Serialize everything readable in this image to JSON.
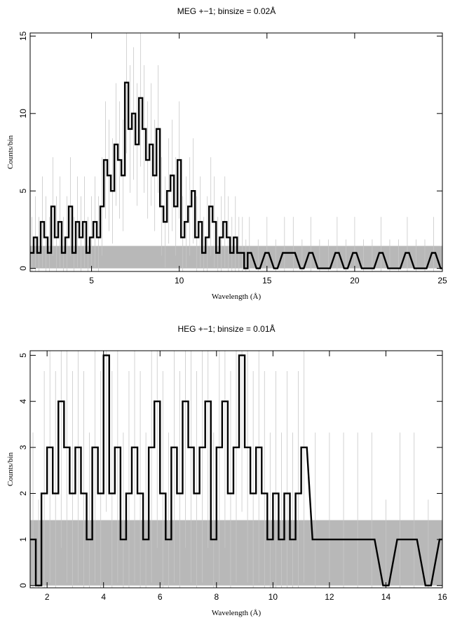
{
  "chart_data": [
    {
      "type": "line",
      "title": "MEG +−1; binsize = 0.02Å",
      "xlabel": "Wavelength (Å)",
      "ylabel": "Counts/bin",
      "xlim": [
        1.5,
        25
      ],
      "ylim": [
        -0.2,
        15.2
      ],
      "xticks": [
        5,
        10,
        15,
        20,
        25
      ],
      "yticks": [
        0,
        5,
        10,
        15
      ],
      "xtick_labels": [
        "5",
        "10",
        "15",
        "20",
        "25"
      ],
      "ytick_labels": [
        "0",
        "5",
        "10",
        "15"
      ],
      "binsize": 0.02,
      "grid": false,
      "background_band": {
        "x": [
          1.5,
          25
        ],
        "y": [
          0,
          1.45
        ],
        "color": "#b8b8b8"
      },
      "colors": {
        "data": "#000000",
        "model": "#b8b8b8",
        "errors": "#c8c8c8"
      },
      "series": [
        {
          "style": "histogram-step",
          "x": [
            1.6,
            1.8,
            2.0,
            2.2,
            2.4,
            2.6,
            2.8,
            3.0,
            3.2,
            3.4,
            3.6,
            3.8,
            4.0,
            4.2,
            4.4,
            4.6,
            4.8,
            5.0,
            5.2,
            5.4,
            5.6,
            5.8,
            6.0,
            6.2,
            6.4,
            6.6,
            6.8,
            7.0,
            7.2,
            7.4,
            7.6,
            7.8,
            8.0,
            8.2,
            8.4,
            8.6,
            8.8,
            9.0,
            9.2,
            9.4,
            9.6,
            9.8,
            10.0,
            10.2,
            10.4,
            10.6,
            10.8,
            11.0,
            11.2,
            11.4,
            11.6,
            11.8,
            12.0,
            12.2,
            12.4,
            12.6,
            12.8,
            13.0,
            13.2,
            13.4,
            13.6,
            13.8,
            14.0,
            14.5,
            15.0,
            15.5,
            16.0,
            16.5,
            17.0,
            17.5,
            18.0,
            18.5,
            19.0,
            19.5,
            20.0,
            20.5,
            21.0,
            21.5,
            22.0,
            22.5,
            23.0,
            23.5,
            24.0,
            24.5,
            25.0
          ],
          "y": [
            1,
            2,
            1,
            3,
            2,
            1,
            4,
            2,
            3,
            1,
            2,
            4,
            1,
            3,
            2,
            3,
            1,
            2,
            3,
            2,
            4,
            7,
            6,
            5,
            8,
            7,
            6,
            12,
            9,
            10,
            8,
            11,
            9,
            7,
            8,
            6,
            9,
            4,
            3,
            5,
            6,
            4,
            7,
            2,
            3,
            4,
            5,
            2,
            3,
            1,
            2,
            4,
            3,
            1,
            2,
            3,
            2,
            1,
            2,
            1,
            1,
            0,
            1,
            0,
            1,
            0,
            1,
            1,
            0,
            1,
            0,
            0,
            1,
            0,
            1,
            0,
            0,
            1,
            0,
            0,
            1,
            0,
            0,
            1,
            0
          ]
        }
      ]
    },
    {
      "type": "line",
      "title": "HEG +−1; binsize = 0.01Å",
      "xlabel": "Wavelength (Å)",
      "ylabel": "Counts/bin",
      "xlim": [
        1.4,
        16
      ],
      "ylim": [
        -0.05,
        5.1
      ],
      "xticks": [
        2,
        4,
        6,
        8,
        10,
        12,
        14,
        16
      ],
      "yticks": [
        0,
        1,
        2,
        3,
        4,
        5
      ],
      "xtick_labels": [
        "2",
        "4",
        "6",
        "8",
        "10",
        "12",
        "14",
        "16"
      ],
      "ytick_labels": [
        "0",
        "1",
        "2",
        "3",
        "4",
        "5"
      ],
      "binsize": 0.01,
      "grid": false,
      "background_band": {
        "x": [
          1.4,
          16
        ],
        "y": [
          0,
          1.42
        ],
        "color": "#b8b8b8"
      },
      "colors": {
        "data": "#000000",
        "model": "#b8b8b8",
        "errors": "#c8c8c8"
      },
      "series": [
        {
          "style": "histogram-step",
          "x": [
            1.5,
            1.7,
            1.9,
            2.1,
            2.3,
            2.5,
            2.7,
            2.9,
            3.1,
            3.3,
            3.5,
            3.7,
            3.9,
            4.1,
            4.3,
            4.5,
            4.7,
            4.9,
            5.1,
            5.3,
            5.5,
            5.7,
            5.9,
            6.1,
            6.3,
            6.5,
            6.7,
            6.9,
            7.1,
            7.3,
            7.5,
            7.7,
            7.9,
            8.1,
            8.3,
            8.5,
            8.7,
            8.9,
            9.1,
            9.3,
            9.5,
            9.7,
            9.9,
            10.1,
            10.3,
            10.5,
            10.7,
            10.9,
            11.1,
            11.5,
            12.0,
            12.5,
            13.0,
            13.5,
            14.0,
            14.5,
            15.0,
            15.5,
            16.0
          ],
          "y": [
            1,
            0,
            2,
            3,
            2,
            4,
            3,
            2,
            3,
            2,
            1,
            3,
            2,
            5,
            2,
            3,
            1,
            2,
            3,
            2,
            1,
            3,
            4,
            2,
            1,
            3,
            2,
            4,
            3,
            2,
            3,
            4,
            1,
            3,
            4,
            2,
            3,
            5,
            3,
            2,
            3,
            2,
            1,
            2,
            1,
            2,
            1,
            2,
            3,
            1,
            1,
            1,
            1,
            1,
            0,
            1,
            1,
            0,
            1
          ]
        }
      ]
    }
  ]
}
